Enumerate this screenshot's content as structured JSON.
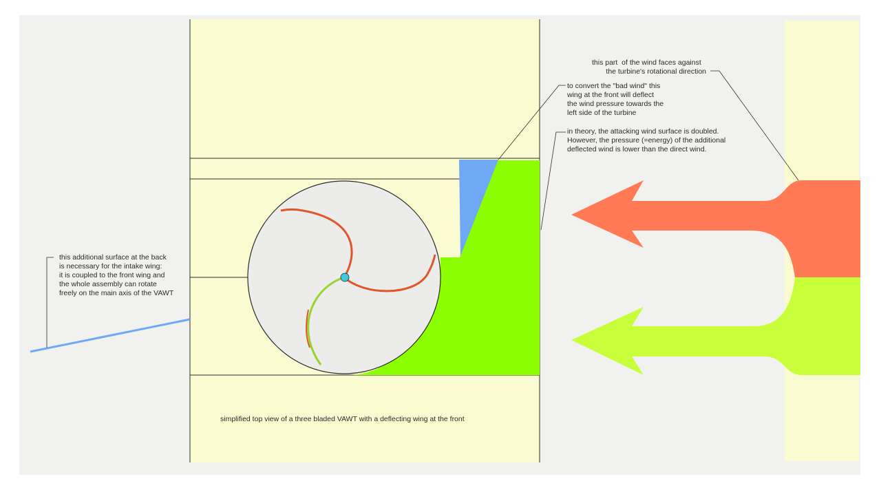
{
  "colors": {
    "paper": "#f1f1ef",
    "yellow_zone": "#fbfbd2",
    "green": "#8cff00",
    "green_arrow": "#c8ff3a",
    "red_arrow": "#ff7a55",
    "blue_wing": "#6fa8f5",
    "rotor_fill": "#ececeb",
    "blade_red": "#e0562a",
    "blade_green": "#9ad22e",
    "hub": "#3fc8d8",
    "line": "#2b2b2b"
  },
  "annotations": {
    "wind_opposing": "this part  of the wind faces against\n       the turbine's rotational direction",
    "bad_wind": "to convert the \"bad wind\" this\nwing at the front will deflect\nthe wind pressure towards the\nleft side of the turbine",
    "theory": "in theory, the attacking wind surface is doubled.\nHowever, the pressure (=energy) of the additional\ndeflected wind is lower than the direct wind.",
    "back_surface": "this additional surface at the back\nis necessary for the intake wing:\nit is coupled to the front wing and\nthe whole assembly can rotate\nfreely on the main axis of the VAWT",
    "caption": "simplified top view of a three bladed VAWT with a deflecting wing at the front"
  },
  "icons": [
    "wind-arrow-red",
    "wind-arrow-green",
    "rotor",
    "deflector-wing",
    "back-surface-wing"
  ]
}
